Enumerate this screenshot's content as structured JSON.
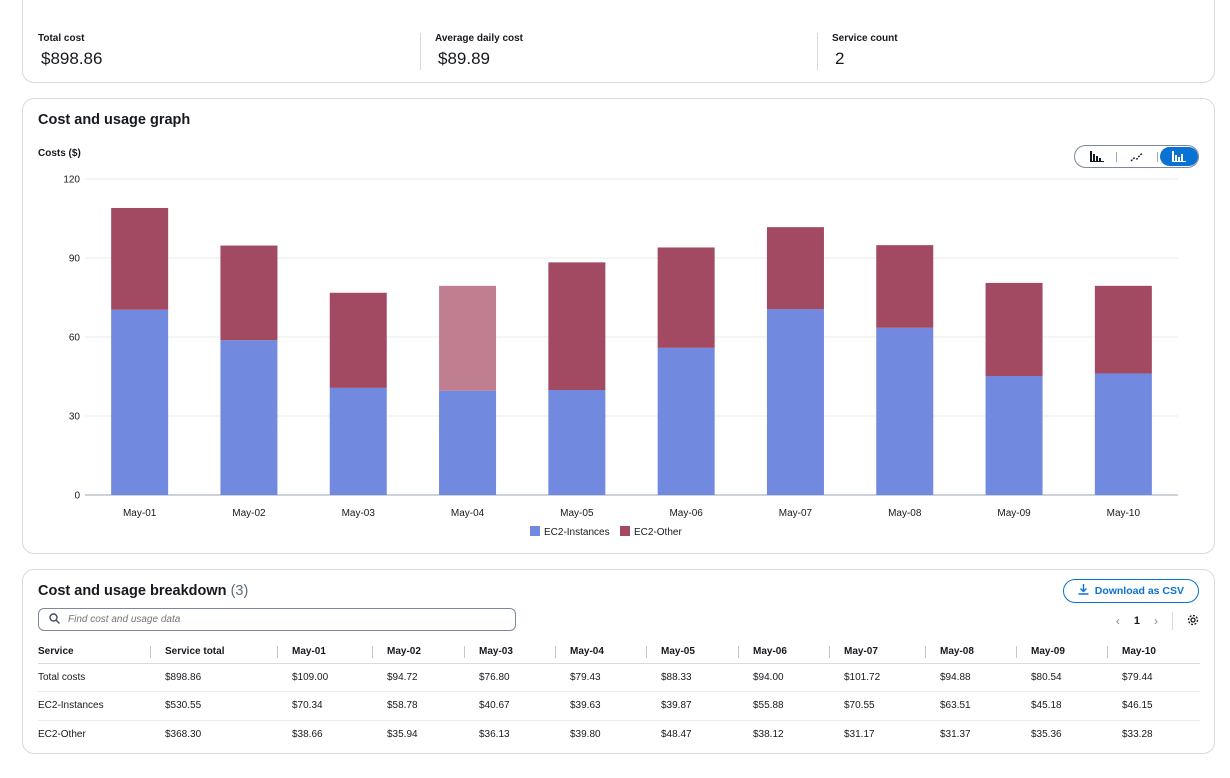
{
  "summary": {
    "total_cost_label": "Total cost",
    "total_cost_value": "$898.86",
    "avg_daily_label": "Average daily cost",
    "avg_daily_value": "$89.89",
    "service_count_label": "Service count",
    "service_count_value": "2"
  },
  "graph": {
    "title": "Cost and usage graph",
    "chart_toggle": [
      "bar-chart-icon",
      "line-chart-icon",
      "stacked-bar-chart-icon"
    ],
    "active_toggle": "stacked-bar-chart-icon"
  },
  "chart_data": {
    "type": "bar",
    "stacked": true,
    "title": "Cost and usage graph",
    "ylabel": "Costs ($)",
    "xlabel": "",
    "ylim": [
      0,
      120
    ],
    "yticks": [
      0,
      30,
      60,
      90,
      120
    ],
    "categories": [
      "May-01",
      "May-02",
      "May-03",
      "May-04",
      "May-05",
      "May-06",
      "May-07",
      "May-08",
      "May-09",
      "May-10"
    ],
    "series": [
      {
        "name": "EC2-Instances",
        "color": "#7189de",
        "values": [
          70.34,
          58.78,
          40.67,
          39.63,
          39.87,
          55.88,
          70.55,
          63.51,
          45.18,
          46.15
        ]
      },
      {
        "name": "EC2-Other",
        "color": "#a34a63",
        "values": [
          38.66,
          35.94,
          36.13,
          39.8,
          48.47,
          38.12,
          31.17,
          31.37,
          35.36,
          33.28
        ]
      }
    ],
    "highlighted_category": "May-04",
    "highlight_color": "#c07f90",
    "legend_position": "bottom-center"
  },
  "breakdown": {
    "title": "Cost and usage breakdown",
    "count": "(3)",
    "download_label": "Download as CSV",
    "search_placeholder": "Find cost and usage data",
    "page": "1",
    "columns": [
      "Service",
      "Service total",
      "May-01",
      "May-02",
      "May-03",
      "May-04",
      "May-05",
      "May-06",
      "May-07",
      "May-08",
      "May-09",
      "May-10"
    ],
    "rows": [
      [
        "Total costs",
        "$898.86",
        "$109.00",
        "$94.72",
        "$76.80",
        "$79.43",
        "$88.33",
        "$94.00",
        "$101.72",
        "$94.88",
        "$80.54",
        "$79.44"
      ],
      [
        "EC2-Instances",
        "$530.55",
        "$70.34",
        "$58.78",
        "$40.67",
        "$39.63",
        "$39.87",
        "$55.88",
        "$70.55",
        "$63.51",
        "$45.18",
        "$46.15"
      ],
      [
        "EC2-Other",
        "$368.30",
        "$38.66",
        "$35.94",
        "$36.13",
        "$39.80",
        "$48.47",
        "$38.12",
        "$31.17",
        "$31.37",
        "$35.36",
        "$33.28"
      ]
    ]
  }
}
